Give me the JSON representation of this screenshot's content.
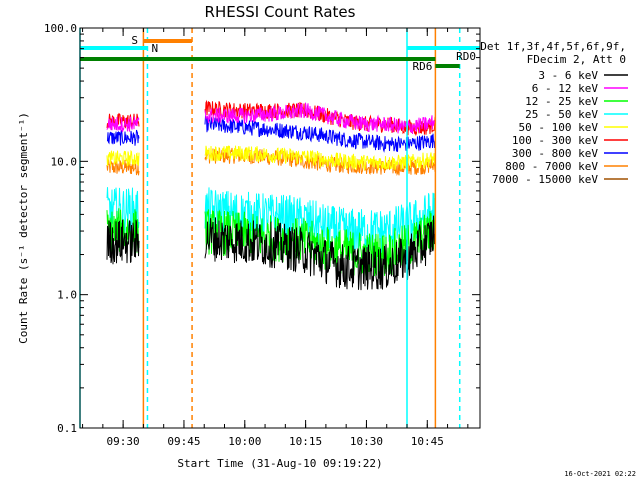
{
  "chart_data": {
    "type": "line",
    "title": "RHESSI Count Rates",
    "xlabel": "Start Time (31-Aug-10 09:19:22)",
    "ylabel": "Count Rate (s⁻¹ detector segment⁻¹)",
    "yscale": "log",
    "ylim": [
      0.1,
      100
    ],
    "y_ticks": [
      "0.1",
      "1.0",
      "10.0",
      "100.0"
    ],
    "x_ticks": [
      "09:30",
      "09:45",
      "10:00",
      "10:15",
      "10:30",
      "10:45"
    ],
    "xlim": [
      "09:19:22",
      "10:58:00"
    ],
    "legend_header": [
      "Det 1f,3f,4f,5f,6f,9f,",
      "FDecim 2, Att 0"
    ],
    "legend_position": "right",
    "grid": false,
    "series": [
      {
        "name": "3 - 6 keV",
        "color": "#000000",
        "x": [
          "09:26",
          "09:33",
          "09:34",
          "09:35",
          "09:50",
          "10:00",
          "10:10",
          "10:15",
          "10:20",
          "10:25",
          "10:30",
          "10:35",
          "10:40",
          "10:45",
          "10:47"
        ],
        "y": [
          2.5,
          2.5,
          2.4,
          0,
          2.7,
          2.5,
          2.3,
          2.1,
          1.8,
          1.6,
          1.6,
          1.6,
          1.9,
          2.5,
          3.0
        ]
      },
      {
        "name": "6 - 12 keV",
        "color": "#ff00ff",
        "x": [
          "09:26",
          "09:33",
          "09:34",
          "09:35",
          "09:50",
          "10:00",
          "10:10",
          "10:15",
          "10:20",
          "10:25",
          "10:30",
          "10:35",
          "10:40",
          "10:45",
          "10:47"
        ],
        "y": [
          19,
          19,
          19,
          0,
          22,
          22,
          23,
          24,
          22,
          20,
          19,
          19,
          18,
          19,
          20
        ]
      },
      {
        "name": "12 - 25 keV",
        "color": "#00ff00",
        "x": [
          "09:26",
          "09:33",
          "09:34",
          "09:35",
          "09:50",
          "10:00",
          "10:10",
          "10:15",
          "10:20",
          "10:25",
          "10:30",
          "10:35",
          "10:40",
          "10:45",
          "10:47"
        ],
        "y": [
          3.0,
          3.0,
          3.0,
          0,
          3.0,
          2.8,
          2.6,
          2.5,
          2.2,
          2.1,
          2.0,
          2.0,
          2.3,
          2.8,
          3.2
        ]
      },
      {
        "name": "25 - 50 keV",
        "color": "#00ffff",
        "x": [
          "09:26",
          "09:33",
          "09:34",
          "09:35",
          "09:50",
          "10:00",
          "10:10",
          "10:15",
          "10:20",
          "10:25",
          "10:30",
          "10:35",
          "10:40",
          "10:45",
          "10:47"
        ],
        "y": [
          4.3,
          4.3,
          4.3,
          0,
          4.3,
          4.0,
          3.8,
          3.6,
          3.2,
          3.0,
          3.0,
          3.0,
          3.3,
          3.9,
          4.5
        ]
      },
      {
        "name": "50 - 100 keV",
        "color": "#ffff00",
        "x": [
          "09:26",
          "09:33",
          "09:34",
          "09:35",
          "09:50",
          "10:00",
          "10:10",
          "10:15",
          "10:20",
          "10:25",
          "10:30",
          "10:35",
          "10:40",
          "10:45",
          "10:47"
        ],
        "y": [
          10.5,
          10.5,
          10.5,
          0,
          11.5,
          11.5,
          11.0,
          10.8,
          10.3,
          10.0,
          9.8,
          9.8,
          9.8,
          10.2,
          10.5
        ]
      },
      {
        "name": "100 - 300 keV",
        "color": "#ff0000",
        "x": [
          "09:26",
          "09:33",
          "09:34",
          "09:35",
          "09:50",
          "10:00",
          "10:10",
          "10:15",
          "10:20",
          "10:25",
          "10:30",
          "10:35",
          "10:40",
          "10:45",
          "10:47"
        ],
        "y": [
          20,
          20,
          20,
          0,
          25,
          24,
          24,
          24,
          22,
          20,
          19,
          19,
          18,
          18,
          19
        ]
      },
      {
        "name": "300 - 800 keV",
        "color": "#0000ff",
        "x": [
          "09:26",
          "09:33",
          "09:34",
          "09:35",
          "09:50",
          "10:00",
          "10:10",
          "10:15",
          "10:20",
          "10:25",
          "10:30",
          "10:35",
          "10:40",
          "10:45",
          "10:47"
        ],
        "y": [
          15,
          15,
          15,
          0,
          19,
          18,
          17,
          16.5,
          15.5,
          14.5,
          14,
          13.5,
          13.5,
          14,
          14.5
        ]
      },
      {
        "name": "800 - 7000 keV",
        "color": "#ff8000",
        "x": [
          "09:26",
          "09:33",
          "09:34",
          "09:35",
          "09:50",
          "10:00",
          "10:10",
          "10:15",
          "10:20",
          "10:25",
          "10:30",
          "10:35",
          "10:40",
          "10:45",
          "10:47"
        ],
        "y": [
          9,
          9,
          9,
          0,
          11,
          11,
          10.5,
          10,
          9.5,
          9.3,
          9.2,
          9.0,
          9.0,
          9.2,
          9.5
        ]
      },
      {
        "name": "7000 - 15000 keV",
        "color": "#a05000",
        "x": [
          "09:26",
          "09:33",
          "09:34",
          "09:35",
          "09:50",
          "10:00",
          "10:10",
          "10:15",
          "10:20",
          "10:25",
          "10:30",
          "10:35",
          "10:40",
          "10:45",
          "10:47"
        ],
        "y": [
          0,
          0,
          0,
          0,
          0,
          0,
          0,
          0,
          0,
          0,
          0,
          0,
          0,
          0,
          0
        ]
      }
    ],
    "flag_bars": [
      {
        "label": "S",
        "color": "#ff8000",
        "start": "09:35",
        "end": "09:47"
      },
      {
        "label": "N",
        "color": "#00ffff",
        "start": "09:19:22",
        "end": "09:36"
      },
      {
        "label": "RD0",
        "color": "#00ffff",
        "start": "10:40",
        "end": "10:58"
      },
      {
        "label": "",
        "color": "#008000",
        "start": "09:19:22",
        "end": "10:47"
      },
      {
        "label": "RD6",
        "color": "#008000",
        "start": "10:47",
        "end": "10:53"
      }
    ],
    "vertical_markers": [
      {
        "time": "09:19:22",
        "color": "#00ffff",
        "style": "solid"
      },
      {
        "time": "09:35",
        "color": "#ff8000",
        "style": "solid"
      },
      {
        "time": "09:36",
        "color": "#00ffff",
        "style": "dashed"
      },
      {
        "time": "09:47",
        "color": "#ff8000",
        "style": "dashed"
      },
      {
        "time": "10:40",
        "color": "#00ffff",
        "style": "solid"
      },
      {
        "time": "10:47",
        "color": "#ff8000",
        "style": "solid"
      },
      {
        "time": "10:53",
        "color": "#00ffff",
        "style": "dashed"
      }
    ]
  },
  "footer_timestamp": "16-Oct-2021 02:22"
}
